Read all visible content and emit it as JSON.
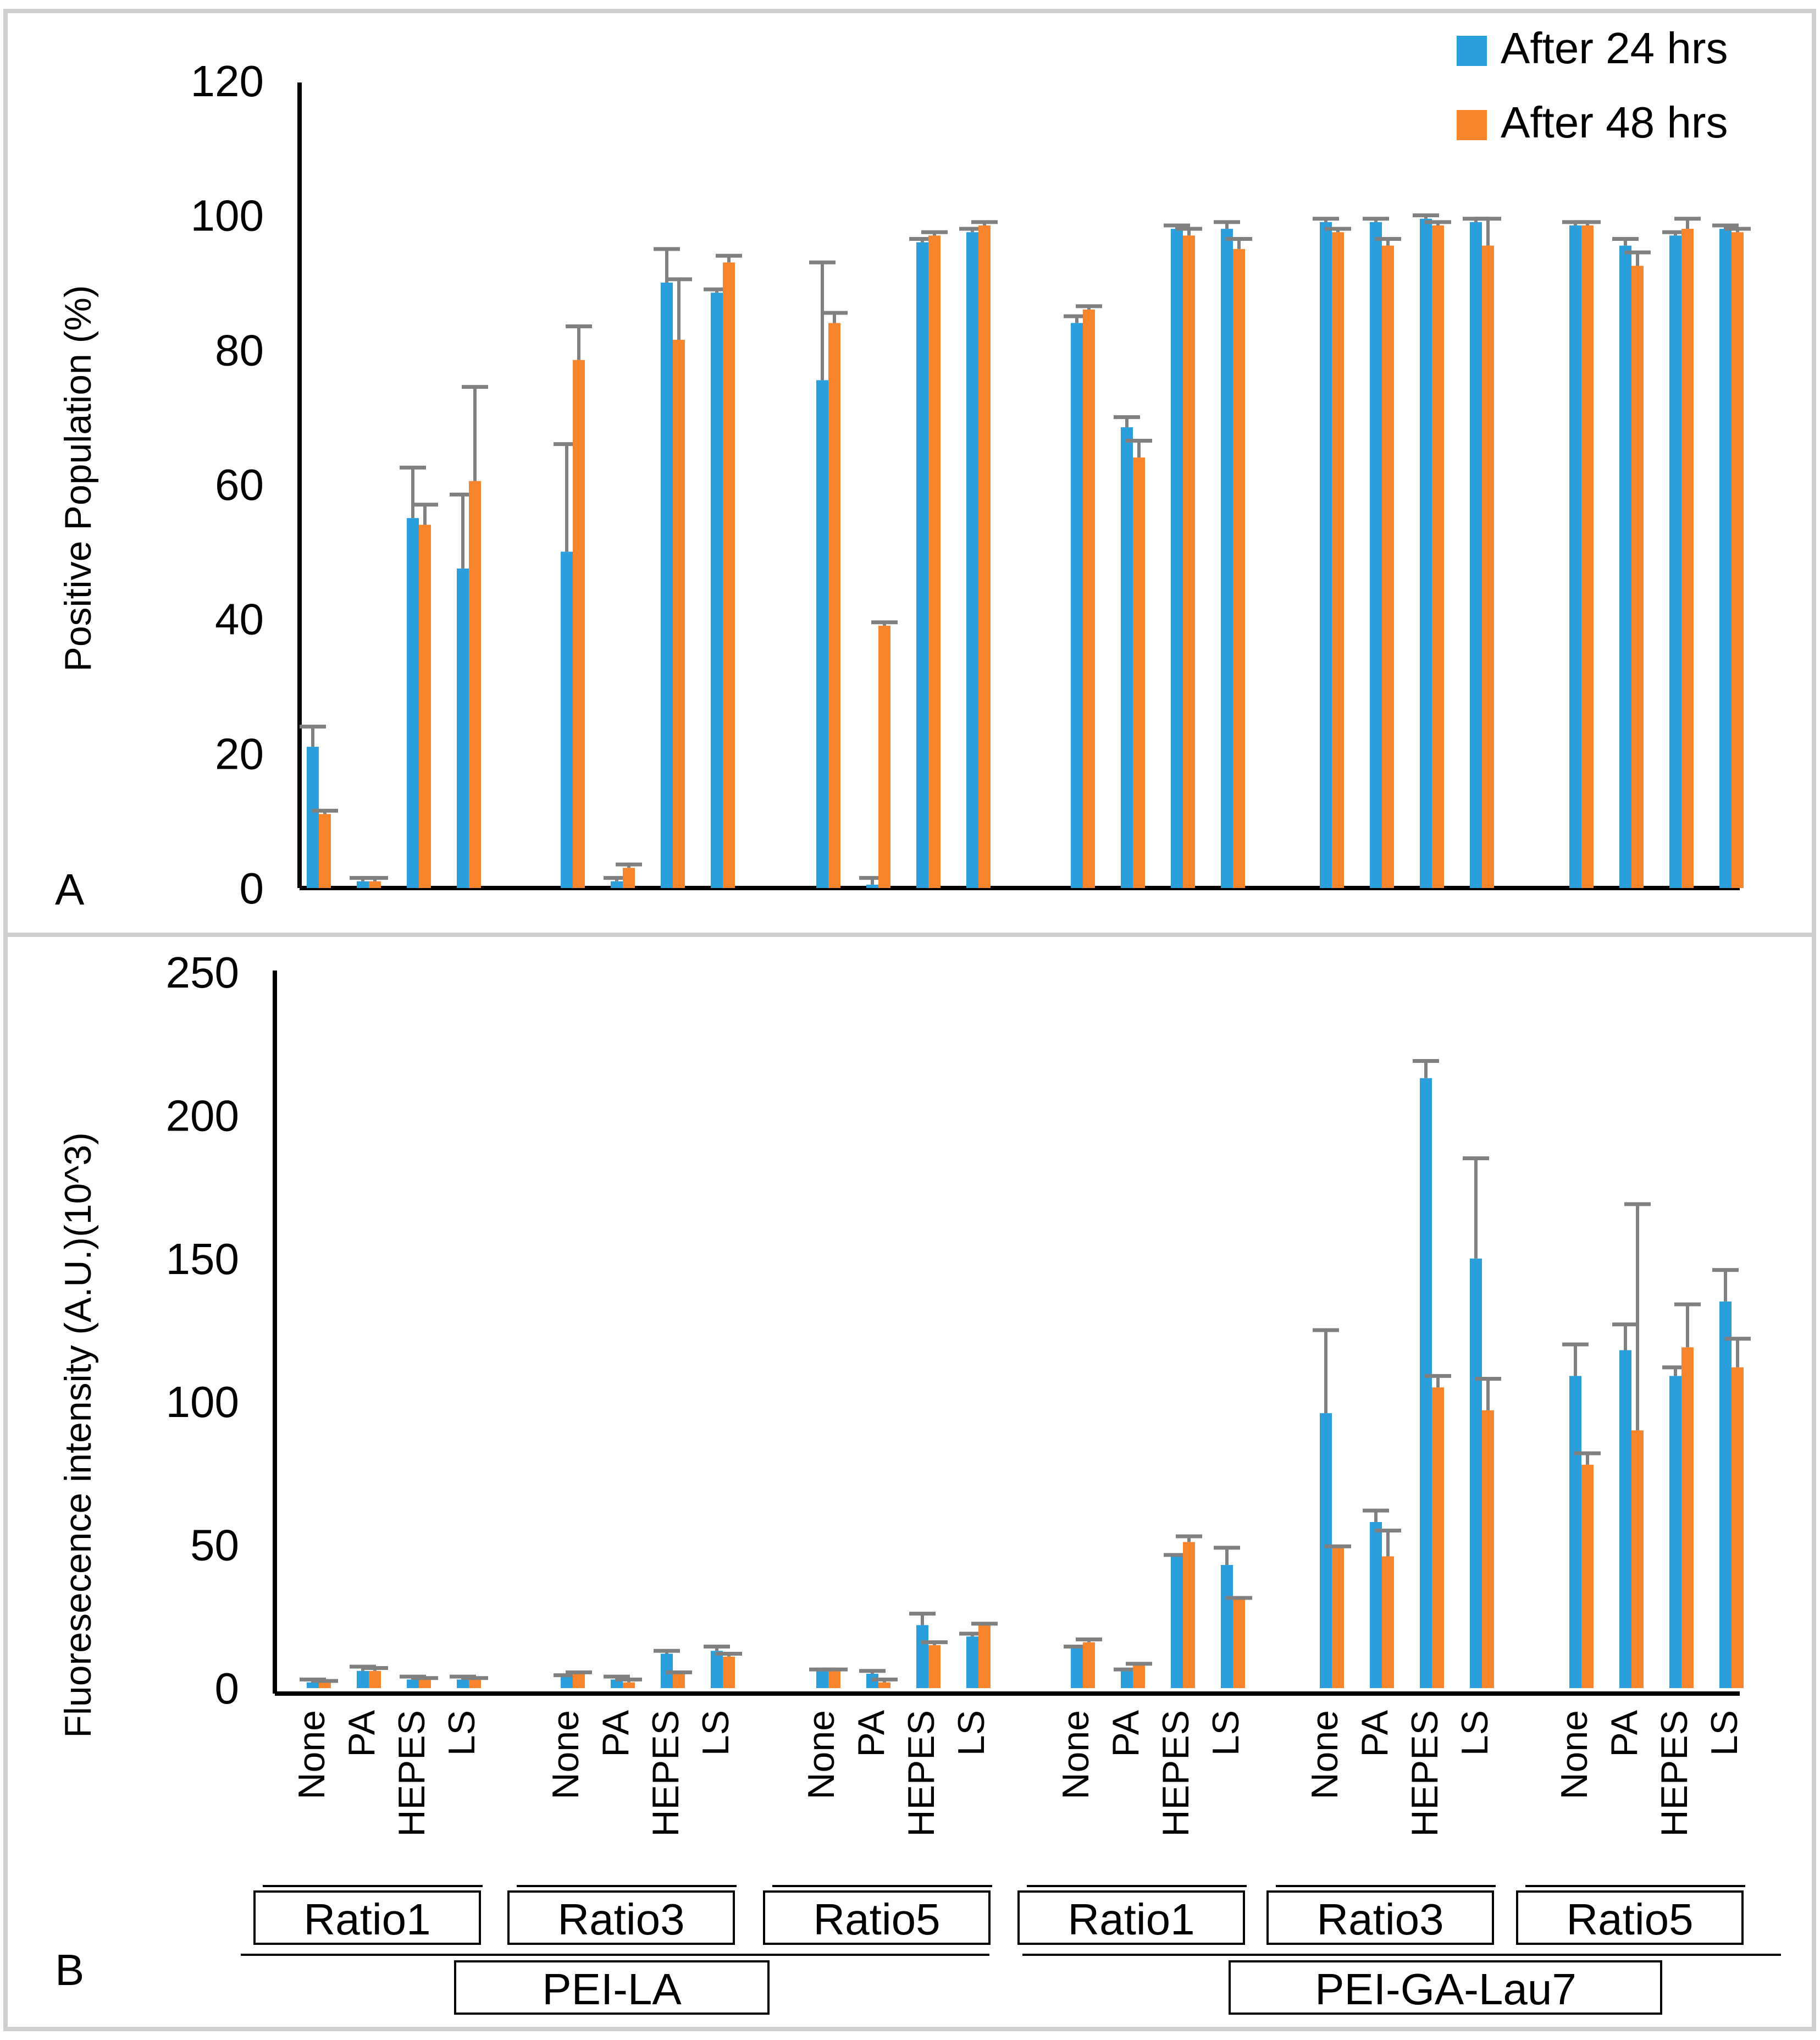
{
  "legend": {
    "items": [
      {
        "label": "After 24 hrs",
        "color": "#2a9fdc"
      },
      {
        "label": "After 48 hrs",
        "color": "#f8842b"
      }
    ]
  },
  "panels": {
    "a_label": "A",
    "b_label": "B"
  },
  "groups": {
    "ratios": [
      "Ratio1",
      "Ratio3",
      "Ratio5",
      "Ratio1",
      "Ratio3",
      "Ratio5"
    ],
    "polymers": [
      "PEI-LA",
      "PEI-GA-Lau7"
    ]
  },
  "chart_data": [
    {
      "type": "bar",
      "panel": "A",
      "title": "",
      "xlabel": "",
      "ylabel": "Positive Population (%)",
      "ylim": [
        0,
        120
      ],
      "yticks": [
        0,
        20,
        40,
        60,
        80,
        100,
        120
      ],
      "legend_position": "top-right",
      "categories": [
        "None",
        "PA",
        "HEPES",
        "LS",
        "None",
        "PA",
        "HEPES",
        "LS",
        "None",
        "PA",
        "HEPES",
        "LS",
        "None",
        "PA",
        "HEPES",
        "LS",
        "None",
        "PA",
        "HEPES",
        "LS",
        "None",
        "PA",
        "HEPES",
        "LS"
      ],
      "series": [
        {
          "name": "After 24 hrs",
          "color": "#2a9fdc",
          "values": [
            21,
            1,
            55,
            47.5,
            50,
            1,
            90,
            88.5,
            75.5,
            0.5,
            96,
            97.5,
            84,
            68.5,
            98,
            98,
            99,
            99,
            99.5,
            99,
            98.5,
            95.5,
            97,
            98
          ],
          "errors": [
            3,
            0.5,
            7.5,
            11,
            16,
            0.5,
            5,
            0.5,
            17.5,
            1,
            0.5,
            0.5,
            1,
            1.5,
            0.5,
            1,
            0.5,
            0.5,
            0.5,
            0.5,
            0.5,
            1,
            0.5,
            0.5
          ]
        },
        {
          "name": "After 48 hrs",
          "color": "#f8842b",
          "values": [
            11,
            1,
            54,
            60.5,
            78.5,
            3,
            81.5,
            93,
            84,
            39,
            97,
            98.5,
            86,
            64,
            97,
            95,
            97.5,
            95.5,
            98.5,
            95.5,
            98.5,
            92.5,
            98,
            97.5
          ],
          "errors": [
            0.5,
            0.5,
            3,
            14,
            5,
            0.5,
            9,
            1,
            1.5,
            0.5,
            0.5,
            0.5,
            0.5,
            2.5,
            1,
            1.5,
            0.5,
            1,
            0.5,
            4,
            0.5,
            2,
            1.5,
            0.5
          ]
        }
      ]
    },
    {
      "type": "bar",
      "panel": "B",
      "title": "",
      "xlabel": "",
      "ylabel": "Fluoresecence intensity (A.U.)(10^3)",
      "ylim": [
        0,
        250
      ],
      "yticks": [
        0,
        50,
        100,
        150,
        200,
        250
      ],
      "categories": [
        "None",
        "PA",
        "HEPES",
        "LS",
        "None",
        "PA",
        "HEPES",
        "LS",
        "None",
        "PA",
        "HEPES",
        "LS",
        "None",
        "PA",
        "HEPES",
        "LS",
        "None",
        "PA",
        "HEPES",
        "LS",
        "None",
        "PA",
        "HEPES",
        "LS"
      ],
      "series": [
        {
          "name": "After 24 hrs",
          "color": "#2a9fdc",
          "values": [
            2,
            6,
            3,
            3,
            4,
            3,
            12,
            13,
            6,
            5,
            22,
            18,
            14,
            6,
            46,
            43,
            96,
            58,
            213,
            150,
            109,
            118,
            109,
            135
          ],
          "errors": [
            1,
            1.5,
            1,
            1,
            0.5,
            1,
            1,
            1.5,
            0.5,
            1,
            4,
            1,
            0.5,
            0.5,
            0.5,
            6,
            29,
            4,
            6,
            35,
            11,
            9,
            3,
            11
          ]
        },
        {
          "name": "After 48 hrs",
          "color": "#f8842b",
          "values": [
            2,
            6,
            3,
            3,
            5,
            2,
            5,
            11,
            6,
            2,
            15,
            22,
            16,
            8,
            51,
            31,
            49,
            46,
            105,
            97,
            78,
            90,
            119,
            112
          ],
          "errors": [
            0.5,
            1,
            0.5,
            0.5,
            0.5,
            1,
            0.5,
            1,
            0.5,
            1,
            1,
            0.5,
            1,
            0.5,
            2,
            0.5,
            0.5,
            9,
            4,
            11,
            4,
            79,
            15,
            10
          ]
        }
      ]
    }
  ]
}
